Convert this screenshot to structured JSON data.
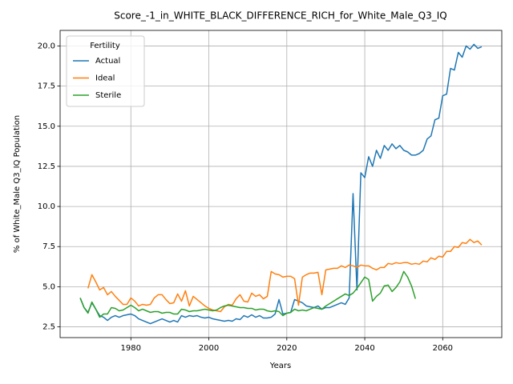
{
  "chart_data": {
    "type": "line",
    "title": "Score_-1_in_WHITE_BLACK_DIFFERENCE_RICH_for_White_Male_Q3_IQ",
    "xlabel": "Years",
    "ylabel": "% of White_Male Q3_IQ Population",
    "legend_title": "Fertility",
    "legend": "upper left",
    "grid": true,
    "x": [
      1967,
      1968,
      1969,
      1970,
      1971,
      1972,
      1973,
      1974,
      1975,
      1976,
      1977,
      1978,
      1979,
      1980,
      1981,
      1982,
      1983,
      1984,
      1985,
      1986,
      1987,
      1988,
      1989,
      1990,
      1991,
      1992,
      1993,
      1994,
      1995,
      1996,
      1997,
      1998,
      1999,
      2000,
      2001,
      2002,
      2003,
      2004,
      2005,
      2006,
      2007,
      2008,
      2009,
      2010,
      2011,
      2012,
      2013,
      2014,
      2015,
      2016,
      2017,
      2018,
      2019,
      2020,
      2021,
      2022,
      2023,
      2024,
      2025,
      2026,
      2027,
      2028,
      2029,
      2030,
      2031,
      2032,
      2033,
      2034,
      2035,
      2036,
      2037,
      2038,
      2039,
      2040,
      2041,
      2042,
      2043,
      2044,
      2045,
      2046,
      2047,
      2048,
      2049,
      2050,
      2051,
      2052,
      2053,
      2054,
      2055,
      2056,
      2057,
      2058,
      2059,
      2060,
      2061,
      2062,
      2063,
      2064,
      2065,
      2066,
      2067,
      2068,
      2069,
      2070
    ],
    "series": [
      {
        "name": "Actual",
        "color": "#1f77b4",
        "values": [
          4.3,
          3.7,
          3.4,
          4.0,
          3.6,
          3.2,
          3.1,
          2.9,
          3.1,
          3.2,
          3.1,
          3.2,
          3.25,
          3.3,
          3.2,
          3.0,
          2.9,
          2.8,
          2.7,
          2.8,
          2.9,
          3.0,
          2.9,
          2.8,
          2.9,
          2.8,
          3.2,
          3.1,
          3.2,
          3.15,
          3.2,
          3.1,
          3.05,
          3.1,
          3.0,
          2.95,
          2.9,
          2.85,
          2.9,
          2.85,
          3.0,
          2.95,
          3.2,
          3.1,
          3.25,
          3.1,
          3.2,
          3.05,
          3.05,
          3.1,
          3.3,
          4.2,
          3.3,
          3.35,
          3.4,
          4.2,
          4.1,
          4.0,
          3.8,
          3.75,
          3.7,
          3.8,
          3.6,
          3.7,
          3.7,
          3.8,
          3.9,
          4.0,
          3.9,
          4.3,
          10.8,
          4.8,
          12.1,
          11.8,
          13.1,
          12.5,
          13.5,
          13.0,
          13.8,
          13.5,
          13.9,
          13.6,
          13.8,
          13.5,
          13.4,
          13.2,
          13.2,
          13.3,
          13.5,
          14.2,
          14.4,
          15.4,
          15.5,
          16.9,
          17.0,
          18.6,
          18.5,
          19.6,
          19.3,
          20.0,
          19.8,
          20.1,
          19.85,
          19.95
        ]
      },
      {
        "name": "Ideal",
        "color": "#ff7f0e",
        "values": [
          null,
          null,
          4.9,
          5.75,
          5.3,
          4.8,
          4.95,
          4.5,
          4.7,
          4.4,
          4.15,
          3.9,
          3.9,
          4.3,
          4.1,
          3.8,
          3.9,
          3.85,
          3.9,
          4.3,
          4.5,
          4.5,
          4.2,
          3.95,
          4.0,
          4.55,
          4.1,
          4.75,
          3.8,
          4.4,
          4.2,
          4.0,
          3.8,
          3.65,
          3.55,
          3.5,
          3.45,
          3.75,
          3.9,
          3.85,
          4.25,
          4.5,
          4.1,
          4.05,
          4.6,
          4.4,
          4.5,
          4.25,
          4.4,
          5.95,
          5.8,
          5.75,
          5.6,
          5.65,
          5.65,
          5.5,
          3.85,
          5.6,
          5.75,
          5.85,
          5.85,
          5.9,
          4.5,
          6.05,
          6.1,
          6.15,
          6.15,
          6.3,
          6.2,
          6.35,
          6.3,
          6.2,
          6.35,
          6.3,
          6.3,
          6.15,
          6.05,
          6.2,
          6.2,
          6.45,
          6.4,
          6.5,
          6.45,
          6.5,
          6.5,
          6.4,
          6.45,
          6.4,
          6.6,
          6.55,
          6.8,
          6.7,
          6.9,
          6.85,
          7.2,
          7.2,
          7.5,
          7.45,
          7.75,
          7.7,
          7.95,
          7.75,
          7.85,
          7.6
        ]
      },
      {
        "name": "Sterile",
        "color": "#2ca02c",
        "values": [
          4.3,
          3.7,
          3.35,
          4.05,
          3.6,
          3.1,
          3.3,
          3.3,
          3.7,
          3.65,
          3.5,
          3.55,
          3.7,
          3.85,
          3.7,
          3.5,
          3.6,
          3.5,
          3.4,
          3.45,
          3.45,
          3.35,
          3.4,
          3.4,
          3.3,
          3.3,
          3.6,
          3.55,
          3.45,
          3.5,
          3.5,
          3.55,
          3.6,
          3.55,
          3.5,
          3.55,
          3.7,
          3.8,
          3.85,
          3.8,
          3.75,
          3.7,
          3.7,
          3.65,
          3.65,
          3.55,
          3.6,
          3.6,
          3.5,
          3.45,
          3.5,
          3.45,
          3.2,
          3.35,
          3.4,
          3.6,
          3.5,
          3.55,
          3.5,
          3.6,
          3.7,
          3.65,
          3.6,
          3.8,
          3.95,
          4.1,
          4.25,
          4.4,
          4.55,
          4.45,
          4.6,
          4.9,
          5.25,
          5.6,
          5.45,
          4.1,
          4.4,
          4.6,
          5.05,
          5.1,
          4.7,
          4.95,
          5.3,
          5.95,
          5.6,
          5.05,
          4.25,
          null,
          null,
          null,
          null,
          null,
          null,
          null,
          null,
          null,
          null,
          null,
          null,
          null,
          null,
          null,
          null,
          null
        ]
      }
    ],
    "xlim": [
      1961.85,
      2075.15
    ],
    "xticks": [
      1980,
      2000,
      2020,
      2040,
      2060
    ],
    "ylim": [
      1.83,
      20.97
    ],
    "yticks": [
      2.5,
      {
        "value": 5,
        "label": "5.0"
      },
      7.5,
      {
        "value": 10,
        "label": "10.0"
      },
      12.5,
      {
        "value": 15,
        "label": "15.0"
      },
      17.5,
      {
        "value": 20,
        "label": "20.0"
      }
    ]
  }
}
